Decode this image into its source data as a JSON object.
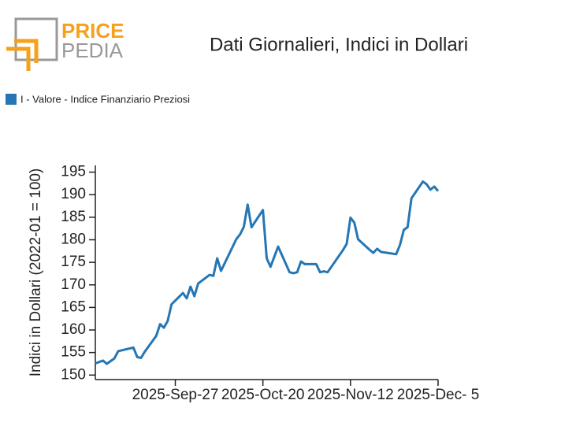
{
  "logo": {
    "line1": "PRICE",
    "line2": "PEDIA"
  },
  "chart_data": {
    "type": "line",
    "title": "Dati Giornalieri, Indici in Dollari",
    "y_label": "Indici in Dollari (2022-01 = 100)",
    "x": [
      "2025-09-06",
      "2025-09-08",
      "2025-09-09",
      "2025-09-11",
      "2025-09-12",
      "2025-09-16",
      "2025-09-17",
      "2025-09-18",
      "2025-09-19",
      "2025-09-22",
      "2025-09-23",
      "2025-09-24",
      "2025-09-25",
      "2025-09-26",
      "2025-09-29",
      "2025-09-30",
      "2025-10-01",
      "2025-10-02",
      "2025-10-03",
      "2025-10-06",
      "2025-10-07",
      "2025-10-08",
      "2025-10-09",
      "2025-10-13",
      "2025-10-14",
      "2025-10-15",
      "2025-10-16",
      "2025-10-17",
      "2025-10-20",
      "2025-10-21",
      "2025-10-22",
      "2025-10-24",
      "2025-10-27",
      "2025-10-28",
      "2025-10-29",
      "2025-10-30",
      "2025-10-31",
      "2025-11-03",
      "2025-11-04",
      "2025-11-05",
      "2025-11-06",
      "2025-11-10",
      "2025-11-11",
      "2025-11-12",
      "2025-11-13",
      "2025-11-14",
      "2025-11-17",
      "2025-11-18",
      "2025-11-19",
      "2025-11-20",
      "2025-11-24",
      "2025-11-25",
      "2025-11-26",
      "2025-11-27",
      "2025-11-28",
      "2025-12-01",
      "2025-12-02",
      "2025-12-03",
      "2025-12-04",
      "2025-12-05"
    ],
    "series": [
      {
        "name": "I - Valore - Indice Finanziario Preziosi",
        "color": "#2576b4",
        "values": [
          152.6,
          153.2,
          152.5,
          153.7,
          155.3,
          156.1,
          154.0,
          153.8,
          155.2,
          158.7,
          161.3,
          160.5,
          162.0,
          165.7,
          168.2,
          167.0,
          169.6,
          167.5,
          170.3,
          172.2,
          172.0,
          175.9,
          173.1,
          180.1,
          181.2,
          182.9,
          187.8,
          182.8,
          186.6,
          175.9,
          174.0,
          178.5,
          172.8,
          172.6,
          172.8,
          175.2,
          174.6,
          174.6,
          172.8,
          173.0,
          172.8,
          177.7,
          179.1,
          184.9,
          183.8,
          180.1,
          177.8,
          177.1,
          178.0,
          177.3,
          176.8,
          178.9,
          182.2,
          182.8,
          189.2,
          192.9,
          192.3,
          191.1,
          191.8,
          190.8
        ]
      }
    ],
    "xlim": [
      "2025-09-06",
      "2025-12-05"
    ],
    "xticks": [
      {
        "value": "2025-09-27",
        "label": "2025-Sep-27"
      },
      {
        "value": "2025-10-20",
        "label": "2025-Oct-20"
      },
      {
        "value": "2025-11-12",
        "label": "2025-Nov-12"
      },
      {
        "value": "2025-12-05",
        "label": "2025-Dec- 5"
      }
    ],
    "ylim": [
      149,
      196.5
    ],
    "yticks": [
      150,
      155,
      160,
      165,
      170,
      175,
      180,
      185,
      190,
      195
    ]
  }
}
